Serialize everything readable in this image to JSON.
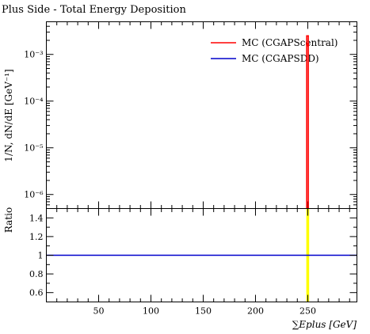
{
  "chart_data": [
    {
      "panel": "main",
      "type": "line",
      "title": "Plus Side - Total Energy Deposition",
      "ylabel": "1/N, dN/dE [GeV⁻¹]",
      "yscale": "log",
      "ylim": [
        5e-07,
        0.005
      ],
      "xlim": [
        0,
        297
      ],
      "ytick_labels": [
        "10⁻⁶",
        "10⁻⁵",
        "10⁻⁴",
        "10⁻³"
      ],
      "legend_position": "top-right",
      "series": [
        {
          "name": "MC (CGAPScentral)",
          "color": "#ff0000",
          "points": [
            {
              "x": 249,
              "y": 5e-07
            },
            {
              "x": 249,
              "y": 0.0025
            },
            {
              "x": 250.5,
              "y": 0.0025
            },
            {
              "x": 250.5,
              "y": 5e-07
            }
          ],
          "marker": {
            "x": 249.8,
            "y": 0.0016
          }
        },
        {
          "name": "MC (CGAPSDD)",
          "color": "#0000cc",
          "points": []
        }
      ]
    },
    {
      "panel": "ratio",
      "type": "line",
      "ylabel": "Ratio",
      "xlabel": "∑Eplus [GeV]",
      "xlim": [
        0,
        297
      ],
      "ylim": [
        0.5,
        1.5
      ],
      "xticks": [
        50,
        100,
        150,
        200,
        250
      ],
      "xtick_labels": [
        "50",
        "100",
        "150",
        "200",
        "250"
      ],
      "yticks": [
        0.6,
        0.8,
        1,
        1.2,
        1.4
      ],
      "ytick_labels": [
        "0.6",
        "0.8",
        "1",
        "1.2",
        "1.4"
      ],
      "reference_line": {
        "y": 1,
        "color": "#0000cc"
      },
      "band": {
        "x_from": 248.6,
        "x_to": 251.3,
        "color": "#ffff00"
      }
    }
  ]
}
